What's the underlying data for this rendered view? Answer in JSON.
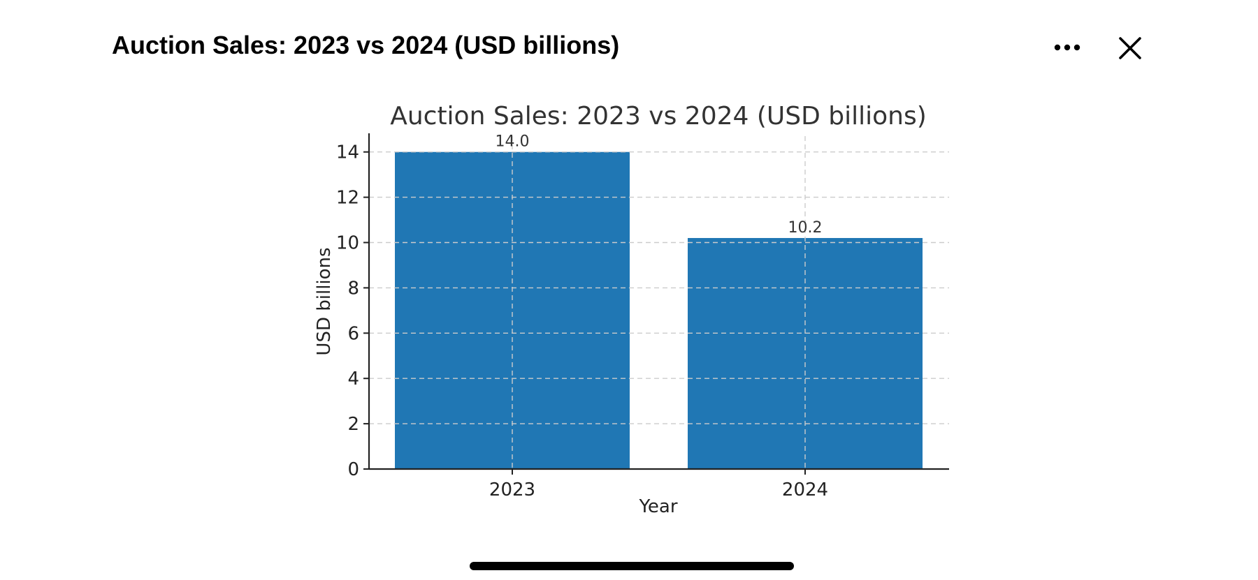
{
  "window": {
    "title": "Auction Sales: 2023 vs 2024 (USD billions)",
    "more_icon": "more-horizontal-icon",
    "close_icon": "close-icon"
  },
  "colors": {
    "bar": "#2077b4",
    "text": "#333333",
    "grid": "#cccccc",
    "axis": "#222222"
  },
  "chart_data": {
    "type": "bar",
    "title": "Auction Sales: 2023 vs 2024 (USD billions)",
    "xlabel": "Year",
    "ylabel": "USD billions",
    "categories": [
      "2023",
      "2024"
    ],
    "values": [
      14.0,
      10.2
    ],
    "data_labels": [
      "14.0",
      "10.2"
    ],
    "ylim": [
      0,
      14.7
    ],
    "yticks": [
      0,
      2,
      4,
      6,
      8,
      10,
      12,
      14
    ],
    "grid": true,
    "legend": "none"
  }
}
